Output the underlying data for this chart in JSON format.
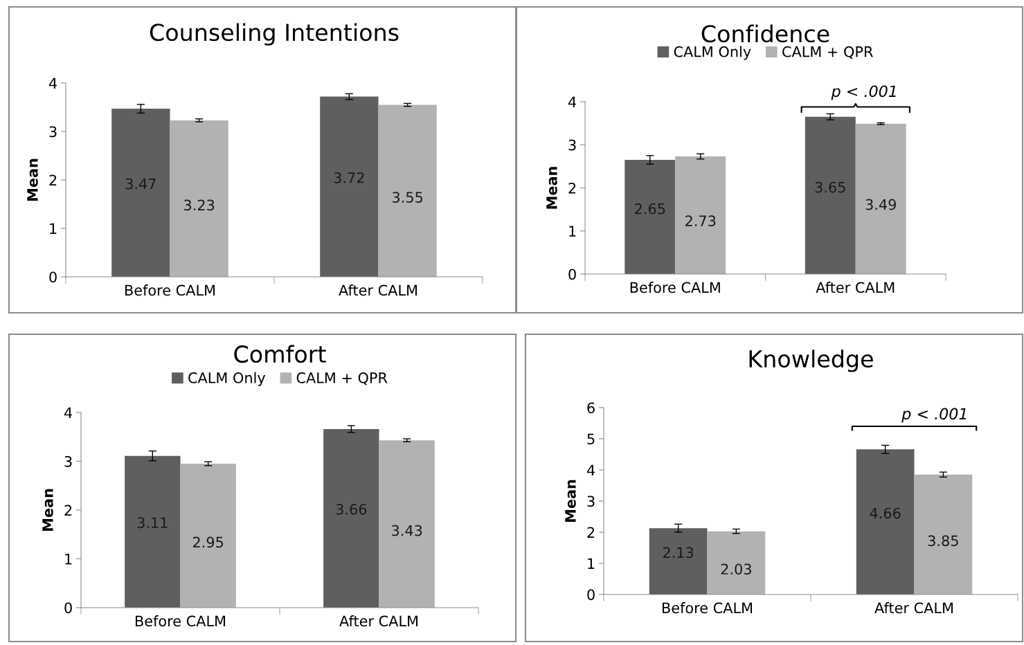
{
  "chart_data": [
    {
      "type": "bar",
      "title": "Counseling Intentions",
      "ylabel": "Mean",
      "categories": [
        "Before CALM",
        "After CALM"
      ],
      "ylim": [
        0,
        4
      ],
      "yticks": [
        0,
        1,
        2,
        3,
        4
      ],
      "grid": false,
      "legend": false,
      "data_labels": true,
      "series": [
        {
          "color": "#5f5f5f",
          "values": [
            3.47,
            3.72
          ],
          "errors": [
            0.09,
            0.06
          ]
        },
        {
          "color": "#b2b2b2",
          "values": [
            3.23,
            3.55
          ],
          "errors": [
            0.03,
            0.03
          ]
        }
      ]
    },
    {
      "type": "bar",
      "title": "Confidence",
      "ylabel": "Mean",
      "categories": [
        "Before CALM",
        "After CALM"
      ],
      "ylim": [
        0,
        4
      ],
      "yticks": [
        0,
        1,
        2,
        3,
        4
      ],
      "grid": false,
      "legend": "top",
      "data_labels": true,
      "series": [
        {
          "name": "CALM Only",
          "color": "#5f5f5f",
          "values": [
            2.65,
            3.65
          ],
          "errors": [
            0.1,
            0.07
          ]
        },
        {
          "name": "CALM + QPR",
          "color": "#b2b2b2",
          "values": [
            2.73,
            3.49
          ],
          "errors": [
            0.06,
            0.02
          ]
        }
      ],
      "annotations": [
        "p < .001"
      ]
    },
    {
      "type": "bar",
      "title": "Comfort",
      "ylabel": "Mean",
      "categories": [
        "Before CALM",
        "After CALM"
      ],
      "ylim": [
        0,
        4
      ],
      "yticks": [
        0,
        1,
        2,
        3,
        4
      ],
      "grid": false,
      "legend": "top",
      "data_labels": true,
      "series": [
        {
          "name": "CALM Only",
          "color": "#5f5f5f",
          "values": [
            3.11,
            3.66
          ],
          "errors": [
            0.1,
            0.07
          ]
        },
        {
          "name": "CALM + QPR",
          "color": "#b2b2b2",
          "values": [
            2.95,
            3.43
          ],
          "errors": [
            0.04,
            0.03
          ]
        }
      ]
    },
    {
      "type": "bar",
      "title": "Knowledge",
      "ylabel": "Mean",
      "categories": [
        "Before CALM",
        "After CALM"
      ],
      "ylim": [
        0,
        6
      ],
      "yticks": [
        0,
        1,
        2,
        3,
        4,
        5,
        6
      ],
      "grid": false,
      "legend": false,
      "data_labels": true,
      "series": [
        {
          "color": "#5f5f5f",
          "values": [
            2.13,
            4.66
          ],
          "errors": [
            0.13,
            0.13
          ]
        },
        {
          "color": "#b2b2b2",
          "values": [
            2.03,
            3.85
          ],
          "errors": [
            0.07,
            0.08
          ]
        }
      ],
      "annotations": [
        "p < .001"
      ]
    }
  ]
}
